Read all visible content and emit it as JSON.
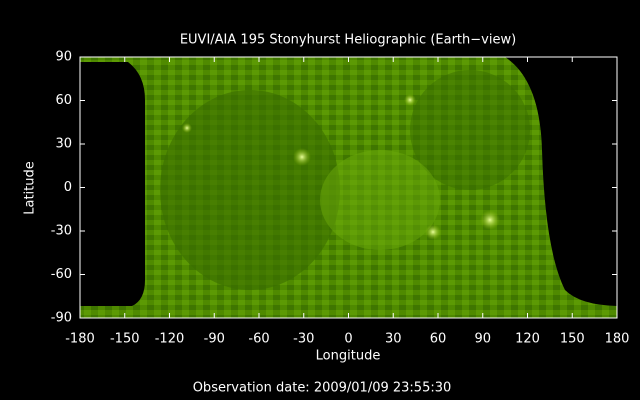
{
  "chart_data": {
    "type": "image",
    "title": "EUVI/AIA 195 Stonyhurst Heliographic (Earth−view)",
    "xlabel": "Longitude",
    "ylabel": "Latitude",
    "xlim": [
      -180,
      180
    ],
    "ylim": [
      -90,
      90
    ],
    "xticks": [
      -180,
      -150,
      -120,
      -90,
      -60,
      -30,
      0,
      30,
      60,
      90,
      120,
      150,
      180
    ],
    "yticks": [
      -90,
      -60,
      -30,
      0,
      30,
      60,
      90
    ],
    "annotation": "Observation date: 2009/01/09 23:55:30"
  }
}
